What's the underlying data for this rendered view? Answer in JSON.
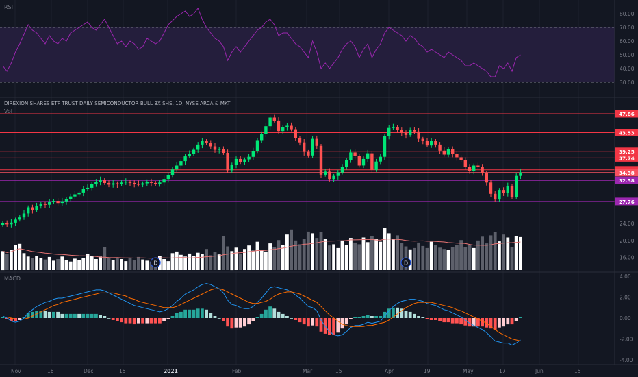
{
  "rsi_panel": {
    "title": "RSI",
    "axis_labels": [
      "80.00",
      "70.00",
      "60.00",
      "50.00",
      "40.00",
      "30.00"
    ],
    "axis_values": [
      80,
      70,
      60,
      50,
      40,
      30
    ],
    "upper_band": 70,
    "lower_band": 30,
    "line_color": "#9C27B0",
    "band_fill": "#241E3C"
  },
  "price_panel": {
    "title": "DIREXION SHARES ETF TRUST DAILY SEMICONDUCTOR BULL 3X SHS, 1D, NYSE ARCA & MKT",
    "volume_label": "Vol",
    "levels": [
      {
        "label": "47.86",
        "value": 47.86,
        "color": "#F23645"
      },
      {
        "label": "43.53",
        "value": 43.53,
        "color": "#F23645"
      },
      {
        "label": "39.25",
        "value": 39.25,
        "color": "#F23645"
      },
      {
        "label": "37.74",
        "value": 37.74,
        "color": "#F23645"
      },
      {
        "label": "35.01",
        "value": 35.01,
        "color": "#F23645"
      },
      {
        "label": "34.38",
        "value": 34.38,
        "color": "#F7525F"
      },
      {
        "label": "32.58",
        "value": 32.58,
        "color": "#9C27B0"
      },
      {
        "label": "27.76",
        "value": 27.76,
        "color": "#9C27B0"
      }
    ],
    "volume_axis_labels": [
      "24.00",
      "20.00",
      "16.00"
    ],
    "volume_axis_values": [
      24,
      20,
      16
    ],
    "event_markers": [
      {
        "label": "D",
        "index": 36
      },
      {
        "label": "D",
        "index": 95
      }
    ],
    "up_color": "#26A69A",
    "candle_up": "#00E676",
    "candle_down": "#FF5252"
  },
  "macd_panel": {
    "title": "MACD",
    "axis_labels": [
      "4.00",
      "2.00",
      "0.00",
      "-2.00",
      "-4.00"
    ],
    "axis_values": [
      4,
      2,
      0,
      -2,
      -4
    ],
    "macd_color": "#2196F3",
    "signal_color": "#FF6D00"
  },
  "time_axis": {
    "labels": [
      "Nov",
      "16",
      "Dec",
      "15",
      "2021",
      "Feb",
      "Mar",
      "15",
      "Apr",
      "19",
      "May",
      "17",
      "Jun",
      "15"
    ],
    "bold": [
      "2021"
    ]
  },
  "chart_data": {
    "type": "candlestick",
    "close": [
      22.8,
      22.5,
      22.9,
      23.6,
      24.1,
      25.0,
      26.4,
      25.8,
      26.7,
      27.2,
      27.0,
      27.6,
      27.9,
      27.4,
      27.8,
      28.3,
      28.9,
      29.4,
      29.8,
      30.6,
      30.9,
      31.8,
      32.3,
      32.7,
      32.0,
      31.6,
      31.9,
      31.7,
      32.1,
      32.3,
      32.0,
      31.8,
      31.6,
      31.9,
      32.2,
      32.0,
      31.7,
      32.1,
      32.9,
      33.8,
      35.1,
      36.0,
      37.0,
      38.1,
      38.7,
      39.6,
      40.8,
      41.6,
      41.2,
      40.4,
      39.6,
      39.8,
      38.9,
      34.9,
      36.2,
      37.5,
      36.8,
      37.4,
      38.0,
      39.3,
      41.8,
      43.2,
      45.0,
      47.0,
      46.3,
      43.9,
      44.8,
      45.1,
      44.3,
      42.2,
      41.3,
      39.1,
      38.3,
      42.1,
      40.5,
      33.9,
      34.6,
      32.9,
      33.6,
      34.4,
      35.6,
      37.3,
      39.0,
      38.2,
      36.0,
      37.5,
      38.8,
      35.0,
      36.9,
      38.0,
      42.8,
      44.6,
      44.8,
      44.1,
      43.5,
      43.0,
      44.2,
      43.8,
      42.1,
      41.7,
      40.6,
      41.6,
      40.8,
      39.4,
      38.5,
      39.8,
      38.6,
      37.9,
      37.3,
      35.6,
      34.8,
      36.0,
      35.6,
      34.2,
      32.1,
      29.5,
      28.2,
      30.4,
      29.7,
      31.3,
      28.8,
      33.6,
      34.4
    ],
    "volume": [
      17.5,
      16.8,
      17.8,
      18.9,
      19.2,
      17.0,
      16.2,
      15.8,
      16.4,
      15.9,
      15.5,
      16.1,
      15.2,
      15.6,
      16.2,
      15.4,
      15.0,
      15.7,
      15.3,
      15.9,
      16.8,
      16.4,
      15.6,
      16.2,
      18.5,
      15.8,
      15.4,
      16.0,
      15.6,
      15.1,
      15.8,
      15.3,
      16.1,
      15.5,
      15.2,
      15.0,
      15.8,
      16.4,
      15.6,
      15.1,
      17.0,
      17.4,
      16.6,
      16.2,
      16.9,
      16.4,
      17.1,
      16.8,
      18.0,
      16.5,
      17.3,
      16.7,
      21.0,
      18.6,
      17.5,
      18.3,
      16.9,
      18.0,
      18.8,
      17.6,
      19.7,
      17.8,
      17.4,
      19.3,
      18.5,
      20.1,
      19.0,
      21.4,
      22.6,
      20.0,
      19.1,
      20.4,
      22.1,
      21.7,
      20.6,
      22.0,
      20.4,
      18.8,
      19.1,
      18.2,
      20.0,
      19.0,
      20.6,
      19.5,
      19.1,
      20.7,
      19.6,
      21.1,
      20.3,
      19.7,
      23.0,
      21.7,
      20.4,
      21.2,
      19.4,
      18.6,
      17.9,
      18.2,
      19.5,
      18.7,
      18.2,
      19.7,
      18.9,
      18.3,
      18.0,
      17.8,
      18.5,
      19.0,
      20.1,
      18.4,
      18.9,
      18.2,
      20.0,
      20.9,
      19.3,
      21.2,
      22.0,
      19.8,
      21.4,
      20.7,
      18.5,
      21.1,
      20.8
    ],
    "rsi": [
      42,
      38,
      44,
      52,
      58,
      65,
      72,
      68,
      66,
      62,
      58,
      64,
      60,
      58,
      62,
      60,
      66,
      68,
      70,
      72,
      74,
      70,
      68,
      72,
      76,
      70,
      64,
      58,
      60,
      56,
      60,
      58,
      54,
      56,
      62,
      60,
      58,
      60,
      66,
      72,
      75,
      78,
      80,
      82,
      78,
      80,
      84,
      76,
      70,
      66,
      62,
      60,
      56,
      46,
      52,
      56,
      52,
      56,
      60,
      64,
      68,
      70,
      74,
      76,
      72,
      64,
      66,
      66,
      62,
      58,
      56,
      52,
      48,
      60,
      52,
      40,
      44,
      40,
      44,
      48,
      54,
      58,
      60,
      56,
      48,
      54,
      58,
      48,
      54,
      58,
      66,
      70,
      68,
      66,
      64,
      60,
      64,
      62,
      58,
      56,
      52,
      54,
      52,
      50,
      48,
      52,
      50,
      48,
      46,
      42,
      42,
      44,
      42,
      40,
      38,
      34,
      34,
      42,
      40,
      44,
      38,
      48,
      50
    ],
    "macd": [
      0.2,
      0.0,
      -0.3,
      -0.4,
      -0.3,
      0.0,
      0.5,
      0.8,
      1.1,
      1.3,
      1.5,
      1.6,
      1.8,
      1.9,
      1.9,
      2.0,
      2.1,
      2.2,
      2.3,
      2.4,
      2.5,
      2.6,
      2.7,
      2.7,
      2.6,
      2.4,
      2.2,
      2.0,
      1.8,
      1.6,
      1.4,
      1.2,
      1.1,
      1.0,
      0.9,
      0.8,
      0.7,
      0.6,
      0.7,
      0.9,
      1.2,
      1.6,
      1.9,
      2.3,
      2.5,
      2.7,
      3.0,
      3.2,
      3.3,
      3.2,
      3.0,
      2.8,
      2.4,
      1.7,
      1.3,
      1.2,
      1.0,
      0.9,
      0.9,
      1.1,
      1.5,
      1.9,
      2.4,
      2.9,
      3.0,
      2.9,
      2.8,
      2.7,
      2.5,
      2.2,
      1.9,
      1.5,
      1.1,
      1.0,
      0.7,
      -0.2,
      -0.8,
      -1.3,
      -1.6,
      -1.7,
      -1.6,
      -1.3,
      -0.9,
      -0.7,
      -0.7,
      -0.6,
      -0.4,
      -0.5,
      -0.4,
      -0.3,
      0.2,
      0.7,
      1.1,
      1.4,
      1.6,
      1.7,
      1.8,
      1.8,
      1.7,
      1.6,
      1.4,
      1.3,
      1.2,
      1.0,
      0.8,
      0.7,
      0.5,
      0.3,
      0.1,
      -0.2,
      -0.5,
      -0.7,
      -0.9,
      -1.1,
      -1.4,
      -1.8,
      -2.2,
      -2.3,
      -2.4,
      -2.4,
      -2.6,
      -2.4,
      -2.1
    ],
    "signal": [
      0.1,
      0.1,
      0.0,
      -0.1,
      -0.1,
      -0.1,
      0.0,
      0.2,
      0.4,
      0.6,
      0.8,
      1.0,
      1.2,
      1.3,
      1.5,
      1.6,
      1.7,
      1.8,
      1.9,
      2.0,
      2.1,
      2.2,
      2.3,
      2.4,
      2.4,
      2.4,
      2.4,
      2.3,
      2.2,
      2.1,
      1.9,
      1.8,
      1.6,
      1.5,
      1.4,
      1.3,
      1.2,
      1.1,
      1.0,
      1.0,
      1.0,
      1.1,
      1.3,
      1.5,
      1.7,
      1.9,
      2.1,
      2.3,
      2.5,
      2.7,
      2.8,
      2.8,
      2.7,
      2.5,
      2.3,
      2.1,
      1.9,
      1.7,
      1.5,
      1.4,
      1.4,
      1.5,
      1.6,
      1.8,
      2.1,
      2.3,
      2.4,
      2.5,
      2.5,
      2.4,
      2.3,
      2.1,
      1.9,
      1.7,
      1.5,
      1.1,
      0.7,
      0.3,
      0.0,
      -0.3,
      -0.6,
      -0.7,
      -0.8,
      -0.8,
      -0.8,
      -0.8,
      -0.7,
      -0.7,
      -0.6,
      -0.5,
      -0.4,
      -0.2,
      0.1,
      0.4,
      0.7,
      1.0,
      1.2,
      1.4,
      1.5,
      1.5,
      1.5,
      1.5,
      1.4,
      1.3,
      1.2,
      1.1,
      1.0,
      0.8,
      0.7,
      0.5,
      0.3,
      0.1,
      -0.1,
      -0.3,
      -0.5,
      -0.8,
      -1.1,
      -1.4,
      -1.6,
      -1.8,
      -2.0,
      -2.1,
      -2.2
    ]
  }
}
